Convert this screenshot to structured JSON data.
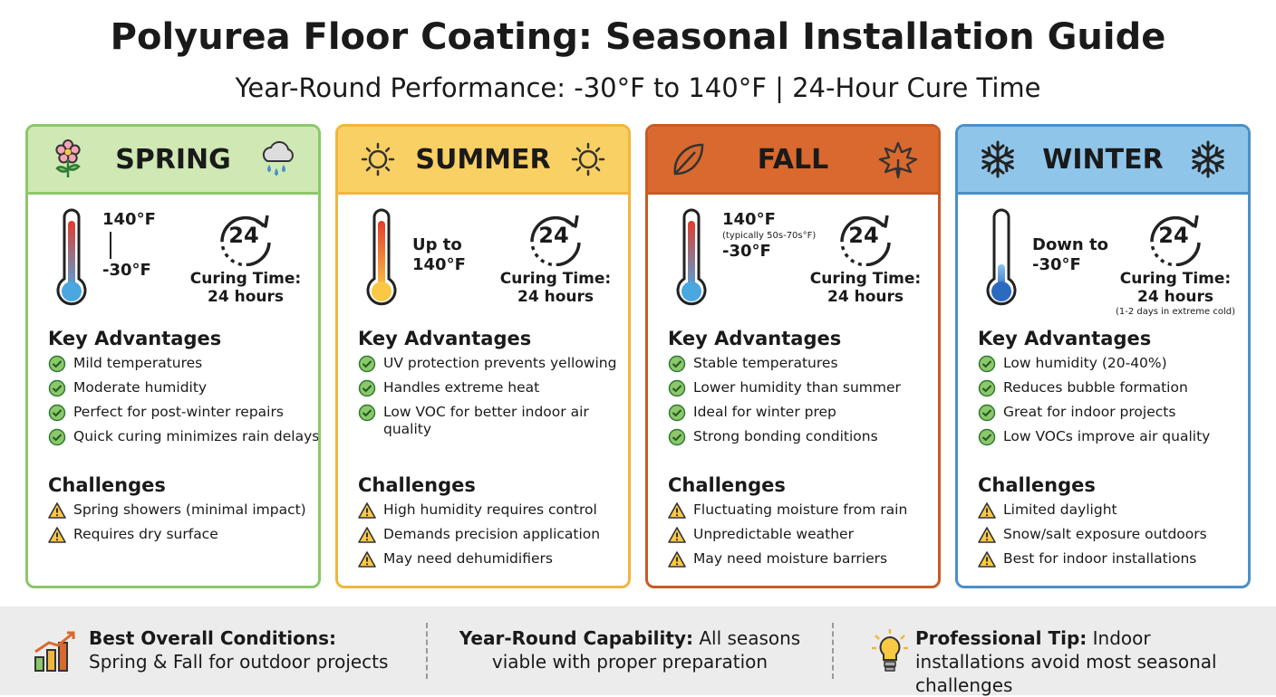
{
  "header": {
    "title": "Polyurea Floor Coating: Seasonal Installation Guide",
    "subtitle": "Year-Round Performance: -30°F to 140°F | 24-Hour Cure Time"
  },
  "seasons": [
    {
      "name": "SPRING",
      "temperature": [
        "140°F",
        "-30°F"
      ],
      "cure_number": "24",
      "cure_label": "Curing Time:",
      "cure_value": "24 hours",
      "advantages_heading": "Key Advantages",
      "advantages": [
        "Mild temperatures",
        "Moderate humidity",
        "Perfect for post-winter repairs",
        "Quick curing minimizes rain delays"
      ],
      "challenges_heading": "Challenges",
      "challenges": [
        "Spring showers (minimal impact)",
        "Requires dry surface"
      ]
    },
    {
      "name": "SUMMER",
      "temperature": [
        "Up to",
        "140°F"
      ],
      "cure_number": "24",
      "cure_label": "Curing Time:",
      "cure_value": "24 hours",
      "advantages_heading": "Key Advantages",
      "advantages": [
        "UV protection prevents yellowing",
        "Handles extreme heat",
        "Low VOC for better indoor air quality"
      ],
      "challenges_heading": "Challenges",
      "challenges": [
        "High humidity requires control",
        "Demands precision application",
        "May need dehumidifiers"
      ]
    },
    {
      "name": "FALL",
      "temperature": [
        "140°F",
        "-30°F"
      ],
      "temperature_note": "(typically 50s-70s°F)",
      "cure_number": "24",
      "cure_label": "Curing Time:",
      "cure_value": "24 hours",
      "advantages_heading": "Key Advantages",
      "advantages": [
        "Stable temperatures",
        "Lower humidity than summer",
        "Ideal for winter prep",
        "Strong bonding conditions"
      ],
      "challenges_heading": "Challenges",
      "challenges": [
        "Fluctuating moisture from rain",
        "Unpredictable weather",
        "May need moisture barriers"
      ]
    },
    {
      "name": "WINTER",
      "temperature": [
        "Down to",
        "-30°F"
      ],
      "cure_number": "24",
      "cure_label": "Curing Time:",
      "cure_value": "24 hours",
      "cure_note": "(1-2 days in extreme cold)",
      "advantages_heading": "Key Advantages",
      "advantages": [
        "Low humidity (20-40%)",
        "Reduces bubble formation",
        "Great for indoor projects",
        "Low VOCs improve air quality"
      ],
      "challenges_heading": "Challenges",
      "challenges": [
        "Limited daylight",
        "Snow/salt exposure outdoors",
        "Best for indoor installations"
      ]
    }
  ],
  "footer": [
    {
      "heading": "Best Overall Conditions:",
      "text": "Spring & Fall for outdoor projects"
    },
    {
      "heading": "Year-Round Capability:",
      "text": "All seasons viable with proper preparation"
    },
    {
      "heading": "Professional Tip:",
      "text": "Indoor installations avoid most seasonal challenges"
    }
  ]
}
